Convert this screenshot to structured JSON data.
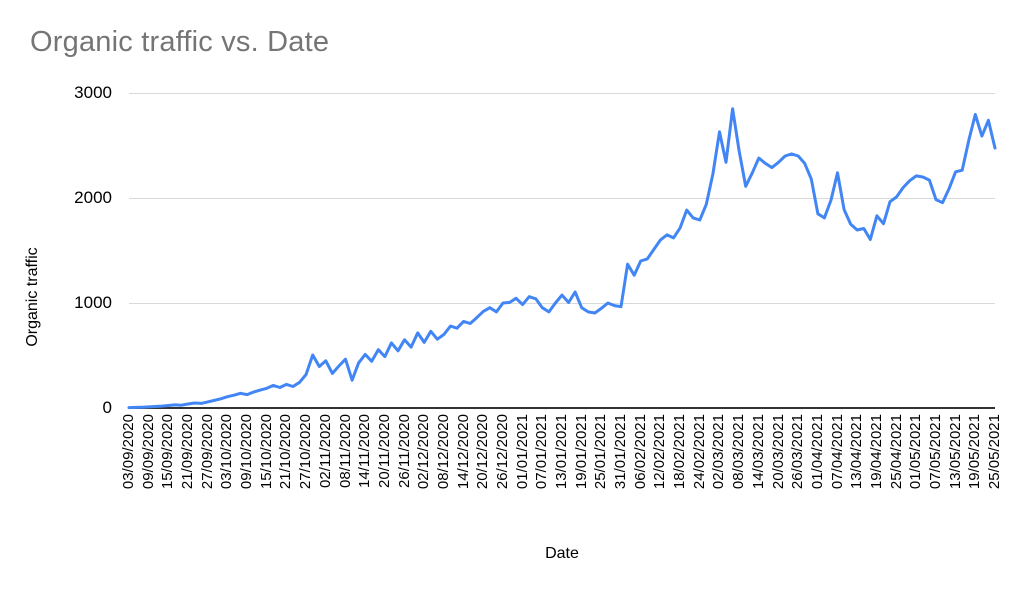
{
  "chart_data": {
    "type": "line",
    "title": "Organic traffic vs. Date",
    "xlabel": "Date",
    "ylabel": "Organic traffic",
    "ylim": [
      0,
      3000
    ],
    "y_ticks": [
      0,
      1000,
      2000,
      3000
    ],
    "grid": "horizontal",
    "legend": "none",
    "x_tick_labels": [
      "03/09/2020",
      "09/09/2020",
      "15/09/2020",
      "21/09/2020",
      "27/09/2020",
      "03/10/2020",
      "09/10/2020",
      "15/10/2020",
      "21/10/2020",
      "27/10/2020",
      "02/11/2020",
      "08/11/2020",
      "14/11/2020",
      "20/11/2020",
      "26/11/2020",
      "02/12/2020",
      "08/12/2020",
      "14/12/2020",
      "20/12/2020",
      "26/12/2020",
      "01/01/2021",
      "07/01/2021",
      "13/01/2021",
      "19/01/2021",
      "25/01/2021",
      "31/01/2021",
      "06/02/2021",
      "12/02/2021",
      "18/02/2021",
      "24/02/2021",
      "02/03/2021",
      "08/03/2021",
      "14/03/2021",
      "20/03/2021",
      "26/03/2021",
      "01/04/2021",
      "07/04/2021",
      "13/04/2021",
      "19/04/2021",
      "25/04/2021",
      "01/05/2021",
      "07/05/2021",
      "13/05/2021",
      "19/05/2021",
      "25/05/2021"
    ],
    "x_range_days": 264,
    "series": [
      {
        "name": "Organic traffic",
        "start_date": "03/09/2020",
        "end_date": "25/05/2021",
        "step_days": 2,
        "values": [
          4,
          6,
          8,
          10,
          14,
          18,
          24,
          30,
          27,
          38,
          48,
          44,
          58,
          72,
          88,
          108,
          122,
          140,
          128,
          152,
          170,
          188,
          215,
          195,
          225,
          205,
          245,
          320,
          505,
          395,
          450,
          330,
          400,
          465,
          265,
          430,
          510,
          445,
          555,
          490,
          620,
          545,
          650,
          580,
          715,
          625,
          730,
          655,
          700,
          780,
          760,
          825,
          805,
          860,
          920,
          955,
          915,
          1000,
          1005,
          1045,
          985,
          1060,
          1040,
          955,
          915,
          1000,
          1075,
          1005,
          1105,
          955,
          915,
          905,
          950,
          1000,
          975,
          965,
          1370,
          1265,
          1400,
          1420,
          1510,
          1600,
          1650,
          1620,
          1715,
          1885,
          1810,
          1790,
          1940,
          2230,
          2630,
          2340,
          2850,
          2450,
          2110,
          2240,
          2380,
          2330,
          2290,
          2340,
          2400,
          2420,
          2400,
          2330,
          2180,
          1850,
          1810,
          1980,
          2240,
          1890,
          1750,
          1695,
          1710,
          1605,
          1830,
          1755,
          1965,
          2010,
          2100,
          2165,
          2210,
          2200,
          2170,
          1985,
          1955,
          2090,
          2250,
          2265,
          2550,
          2795,
          2590,
          2740,
          2475
        ]
      }
    ],
    "colors": {
      "line": "#4285f4",
      "title_text": "#757575",
      "axis_text": "#000000",
      "gridline": "#d9d9d9",
      "baseline": "#333333",
      "background": "#ffffff"
    }
  }
}
